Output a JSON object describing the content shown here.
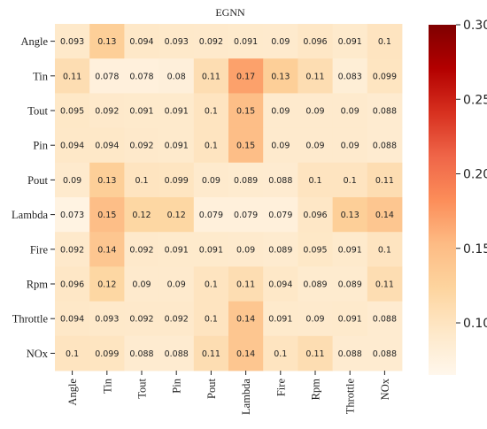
{
  "chart_data": {
    "type": "heatmap",
    "title": "EGNN",
    "rows": [
      "Angle",
      "Tin",
      "Tout",
      "Pin",
      "Pout",
      "Lambda",
      "Fire",
      "Rpm",
      "Throttle",
      "NOx"
    ],
    "columns": [
      "Angle",
      "Tin",
      "Tout",
      "Pin",
      "Pout",
      "Lambda",
      "Fire",
      "Rpm",
      "Throttle",
      "NOx"
    ],
    "values": [
      [
        "0.093",
        "0.13",
        "0.094",
        "0.093",
        "0.092",
        "0.091",
        "0.09",
        "0.096",
        "0.091",
        "0.1"
      ],
      [
        "0.11",
        "0.078",
        "0.078",
        "0.08",
        "0.11",
        "0.17",
        "0.13",
        "0.11",
        "0.083",
        "0.099"
      ],
      [
        "0.095",
        "0.092",
        "0.091",
        "0.091",
        "0.1",
        "0.15",
        "0.09",
        "0.09",
        "0.09",
        "0.088"
      ],
      [
        "0.094",
        "0.094",
        "0.092",
        "0.091",
        "0.1",
        "0.15",
        "0.09",
        "0.09",
        "0.09",
        "0.088"
      ],
      [
        "0.09",
        "0.13",
        "0.1",
        "0.099",
        "0.09",
        "0.089",
        "0.088",
        "0.1",
        "0.1",
        "0.11"
      ],
      [
        "0.073",
        "0.15",
        "0.12",
        "0.12",
        "0.079",
        "0.079",
        "0.079",
        "0.096",
        "0.13",
        "0.14"
      ],
      [
        "0.092",
        "0.14",
        "0.092",
        "0.091",
        "0.091",
        "0.09",
        "0.089",
        "0.095",
        "0.091",
        "0.1"
      ],
      [
        "0.096",
        "0.12",
        "0.09",
        "0.09",
        "0.1",
        "0.11",
        "0.094",
        "0.089",
        "0.089",
        "0.11"
      ],
      [
        "0.094",
        "0.093",
        "0.092",
        "0.092",
        "0.1",
        "0.14",
        "0.091",
        "0.09",
        "0.091",
        "0.088"
      ],
      [
        "0.1",
        "0.099",
        "0.088",
        "0.088",
        "0.11",
        "0.14",
        "0.1",
        "0.11",
        "0.088",
        "0.088"
      ]
    ],
    "colorbar": {
      "range": [
        0.065,
        0.3
      ],
      "ticks": [
        "0.10",
        "0.15",
        "0.20",
        "0.25",
        "0.30"
      ],
      "colormap": "OrRd",
      "colors": [
        "#fff7ec",
        "#fee8c8",
        "#fdd49e",
        "#fdbb84",
        "#fc8d59",
        "#ef6548",
        "#d7301f",
        "#b30000",
        "#7f0000"
      ]
    },
    "grid": false,
    "legend": "colorbar-right"
  }
}
